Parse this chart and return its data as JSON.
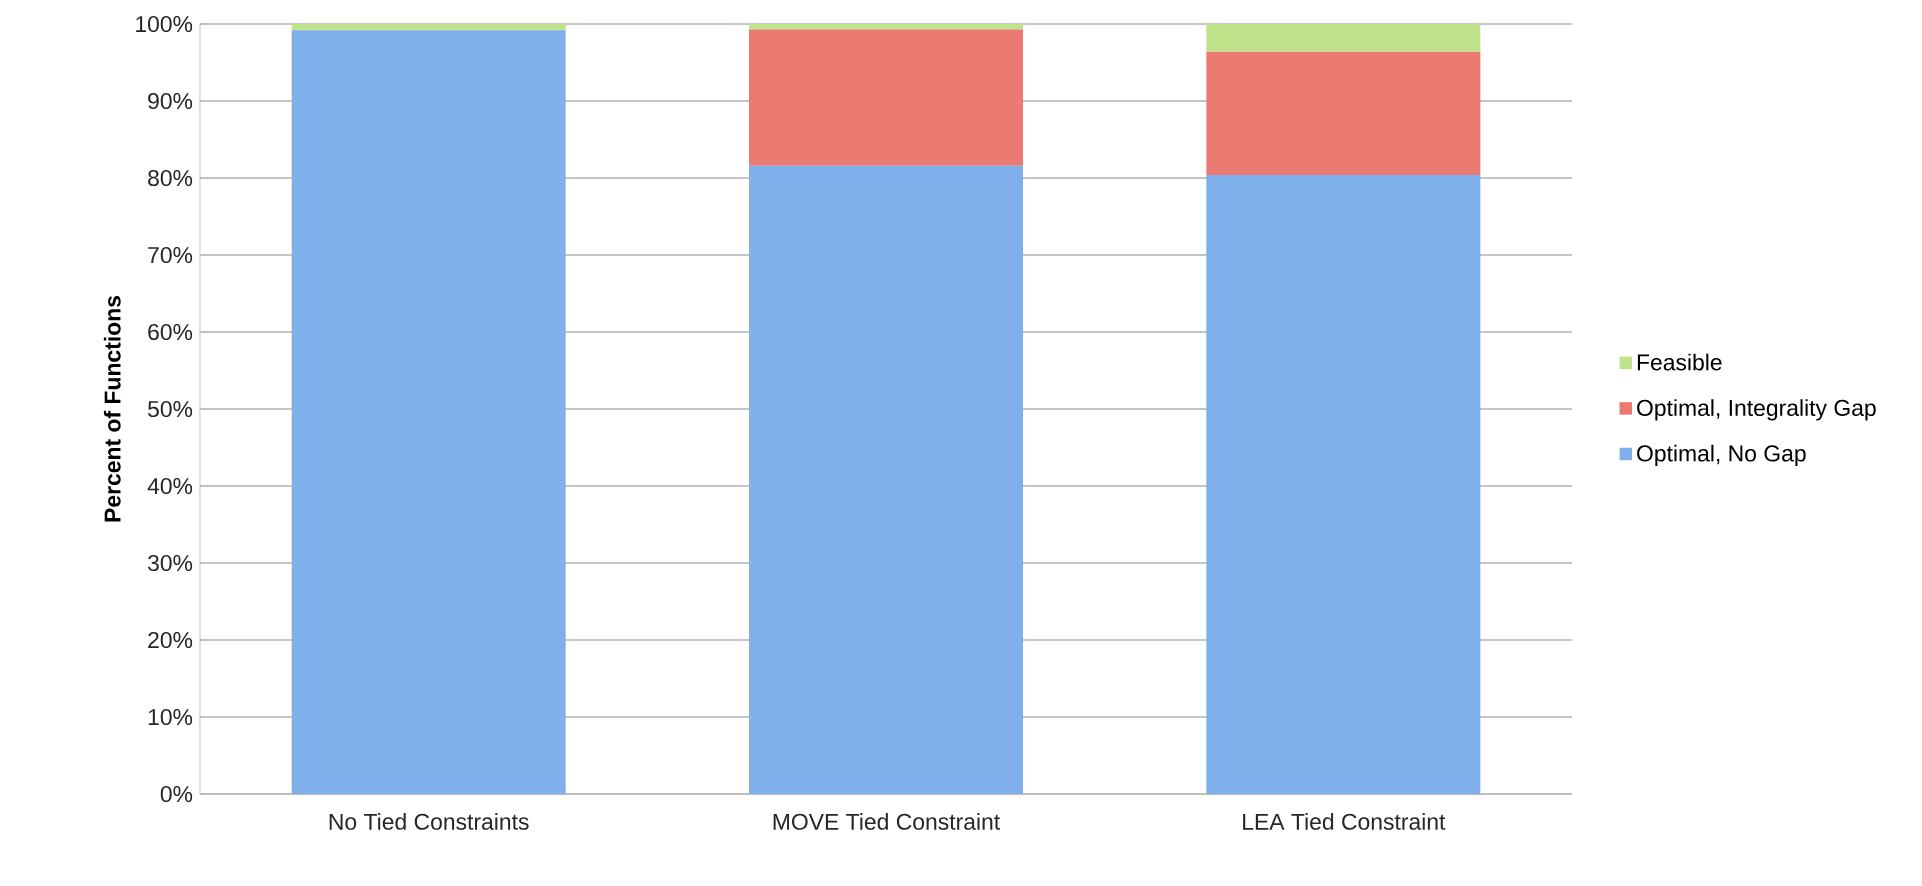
{
  "chart_data": {
    "type": "bar",
    "stacked": true,
    "ylabel": "Percent of Functions",
    "categories": [
      "No Tied Constraints",
      "MOVE Tied Constraint",
      "LEA Tied Constraint"
    ],
    "series": [
      {
        "name": "Optimal, No Gap",
        "color": "#80b0ec",
        "values": [
          99.2,
          81.6,
          80.4
        ]
      },
      {
        "name": "Optimal, Integrality Gap",
        "color": "#ea7a72",
        "values": [
          0.0,
          17.7,
          16.0
        ]
      },
      {
        "name": "Feasible",
        "color": "#bfe38a",
        "values": [
          0.8,
          0.7,
          3.6
        ]
      }
    ],
    "ylim": [
      0,
      100
    ],
    "yticks": [
      {
        "value": 0,
        "label": "0%"
      },
      {
        "value": 10,
        "label": "10%"
      },
      {
        "value": 20,
        "label": "20%"
      },
      {
        "value": 30,
        "label": "30%"
      },
      {
        "value": 40,
        "label": "40%"
      },
      {
        "value": 50,
        "label": "50%"
      },
      {
        "value": 60,
        "label": "60%"
      },
      {
        "value": 70,
        "label": "70%"
      },
      {
        "value": 80,
        "label": "80%"
      },
      {
        "value": 90,
        "label": "90%"
      },
      {
        "value": 100,
        "label": "100%"
      }
    ],
    "grid": "y",
    "legend": "right"
  }
}
